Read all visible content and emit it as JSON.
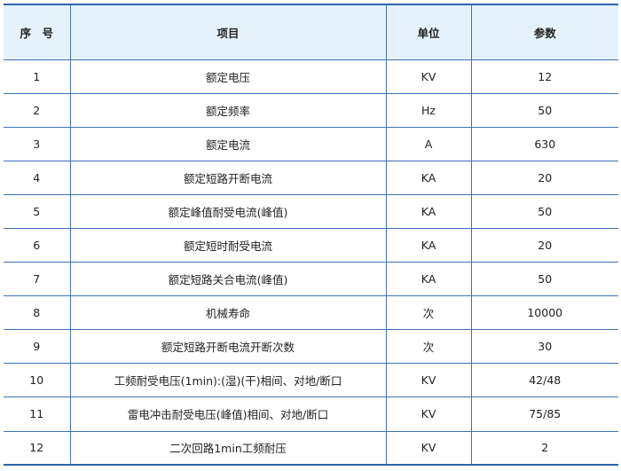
{
  "headers": [
    "序　号",
    "项目",
    "单位",
    "参数"
  ],
  "rows": [
    {
      "no": "1",
      "item": "额定电压",
      "unit": "KV",
      "value": "12"
    },
    {
      "no": "2",
      "item": "额定频率",
      "unit": "Hz",
      "value": "50"
    },
    {
      "no": "3",
      "item": "额定电流",
      "unit": "A",
      "value": "630"
    },
    {
      "no": "4",
      "item": "额定短路开断电流",
      "unit": "KA",
      "value": "20"
    },
    {
      "no": "5",
      "item": "额定峰值耐受电流(峰值)",
      "unit": "KA",
      "value": "50"
    },
    {
      "no": "6",
      "item": "额定短时耐受电流",
      "unit": "KA",
      "value": "20"
    },
    {
      "no": "7",
      "item": "额定短路关合电流(峰值)",
      "unit": "KA",
      "value": "50"
    },
    {
      "no": "8",
      "item": "机械寿命",
      "unit": "次",
      "value": "10000"
    },
    {
      "no": "9",
      "item": "额定短路开断电流开断次数",
      "unit": "次",
      "value": "30"
    },
    {
      "no": "10",
      "item": "工频耐受电压(1min):(湿)(干)相间、对地/断口",
      "unit": "KV",
      "value": "42/48"
    },
    {
      "no": "11",
      "item": "雷电冲击耐受电压(峰值)相间、对地/断口",
      "unit": "KV",
      "value": "75/85"
    },
    {
      "no": "12",
      "item": "二次回路1min工频耐压",
      "unit": "KV",
      "value": "2"
    }
  ]
}
